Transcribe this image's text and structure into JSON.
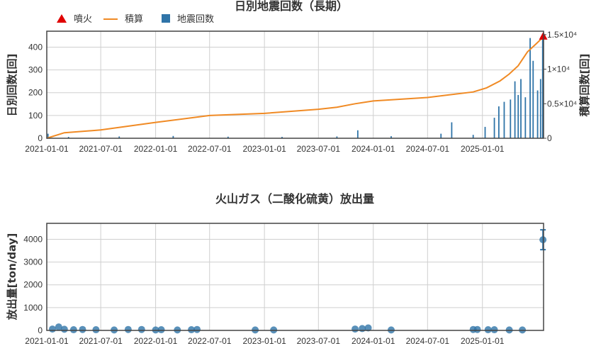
{
  "chart_data": [
    {
      "type": "bar",
      "title": "日別地震回数（長期）",
      "legend": {
        "placement": "top-left",
        "items": [
          {
            "label": "噴火",
            "color": "#e00000",
            "marker": "triangle"
          },
          {
            "label": "積算",
            "color": "#f08a24",
            "marker": "line"
          },
          {
            "label": "地震回数",
            "color": "#2f74a8",
            "marker": "square"
          }
        ]
      },
      "xlabel": "",
      "ylabel": "日別回数[回]",
      "y2label": "積算回数[回]",
      "x_ticks": [
        "2021-01-01",
        "2021-07-01",
        "2022-01-01",
        "2022-07-01",
        "2023-01-01",
        "2023-07-01",
        "2024-01-01",
        "2024-07-01",
        "2025-01-01"
      ],
      "xlim": [
        "2021-01-01",
        "2025-07-25"
      ],
      "ylim": [
        0,
        470
      ],
      "y_ticks": [
        "0",
        "100",
        "200",
        "300",
        "400"
      ],
      "y2lim": [
        0,
        15500
      ],
      "y2_ticks": [
        "0",
        "0.5×10⁴",
        "1×10⁴",
        "1.5×10⁴"
      ],
      "grid": true,
      "series": [
        {
          "name": "地震回数",
          "color": "#2f74a8",
          "type": "bar",
          "note_values": "daily counts (sampled peaks)",
          "points": [
            [
              "2021-01-05",
              20
            ],
            [
              "2021-03-15",
              6
            ],
            [
              "2021-09-01",
              8
            ],
            [
              "2022-03-01",
              10
            ],
            [
              "2022-09-01",
              7
            ],
            [
              "2023-03-01",
              6
            ],
            [
              "2023-09-01",
              8
            ],
            [
              "2023-11-10",
              35
            ],
            [
              "2024-03-01",
              9
            ],
            [
              "2024-08-15",
              20
            ],
            [
              "2024-09-20",
              70
            ],
            [
              "2024-12-01",
              15
            ],
            [
              "2025-01-10",
              50
            ],
            [
              "2025-02-10",
              90
            ],
            [
              "2025-02-25",
              140
            ],
            [
              "2025-03-15",
              160
            ],
            [
              "2025-04-05",
              170
            ],
            [
              "2025-04-20",
              250
            ],
            [
              "2025-05-01",
              190
            ],
            [
              "2025-05-10",
              260
            ],
            [
              "2025-05-25",
              180
            ],
            [
              "2025-06-10",
              440
            ],
            [
              "2025-06-20",
              340
            ],
            [
              "2025-07-05",
              210
            ],
            [
              "2025-07-15",
              260
            ],
            [
              "2025-07-22",
              440
            ]
          ]
        },
        {
          "name": "積算",
          "color": "#f08a24",
          "type": "line",
          "axis": "y2",
          "points": [
            [
              "2021-01-01",
              0
            ],
            [
              "2021-03-01",
              800
            ],
            [
              "2021-07-01",
              1200
            ],
            [
              "2022-01-01",
              2300
            ],
            [
              "2022-07-01",
              3300
            ],
            [
              "2023-01-01",
              3600
            ],
            [
              "2023-07-01",
              4200
            ],
            [
              "2023-09-01",
              4500
            ],
            [
              "2023-11-01",
              5000
            ],
            [
              "2024-01-01",
              5400
            ],
            [
              "2024-07-01",
              5900
            ],
            [
              "2024-12-01",
              6700
            ],
            [
              "2025-01-15",
              7300
            ],
            [
              "2025-03-01",
              8300
            ],
            [
              "2025-04-01",
              9300
            ],
            [
              "2025-05-01",
              10500
            ],
            [
              "2025-06-01",
              12500
            ],
            [
              "2025-07-01",
              13700
            ],
            [
              "2025-07-25",
              14700
            ]
          ]
        },
        {
          "name": "噴火",
          "color": "#e00000",
          "type": "marker",
          "axis": "y2",
          "points": [
            [
              "2025-07-24",
              14800
            ]
          ]
        }
      ]
    },
    {
      "type": "scatter",
      "title": "火山ガス（二酸化硫黄）放出量",
      "xlabel": "",
      "ylabel": "放出量[ton/day]",
      "x_ticks": [
        "2021-01-01",
        "2021-07-01",
        "2022-01-01",
        "2022-07-01",
        "2023-01-01",
        "2023-07-01",
        "2024-01-01",
        "2024-07-01",
        "2025-01-01"
      ],
      "xlim": [
        "2021-01-01",
        "2025-07-25"
      ],
      "ylim": [
        0,
        4700
      ],
      "y_ticks": [
        "0",
        "1000",
        "2000",
        "3000",
        "4000"
      ],
      "grid": true,
      "series": [
        {
          "name": "",
          "color": "#2f74a8",
          "points": [
            [
              "2021-01-20",
              60
            ],
            [
              "2021-02-10",
              150
            ],
            [
              "2021-03-01",
              50
            ],
            [
              "2021-04-01",
              30
            ],
            [
              "2021-05-01",
              40
            ],
            [
              "2021-06-15",
              30
            ],
            [
              "2021-08-15",
              20
            ],
            [
              "2021-10-01",
              40
            ],
            [
              "2021-11-15",
              40
            ],
            [
              "2022-01-01",
              20
            ],
            [
              "2022-01-20",
              30
            ],
            [
              "2022-03-15",
              20
            ],
            [
              "2022-05-01",
              30
            ],
            [
              "2022-05-20",
              40
            ],
            [
              "2022-12-01",
              20
            ],
            [
              "2023-02-01",
              20
            ],
            [
              "2023-11-01",
              60
            ],
            [
              "2023-11-25",
              80
            ],
            [
              "2023-12-15",
              110
            ],
            [
              "2024-03-01",
              20
            ],
            [
              "2024-12-01",
              40
            ],
            [
              "2024-12-15",
              40
            ],
            [
              "2025-01-20",
              30
            ],
            [
              "2025-02-10",
              30
            ],
            [
              "2025-04-01",
              20
            ],
            [
              "2025-05-15",
              20
            ],
            [
              "2025-07-23",
              3980
            ]
          ]
        }
      ]
    }
  ]
}
